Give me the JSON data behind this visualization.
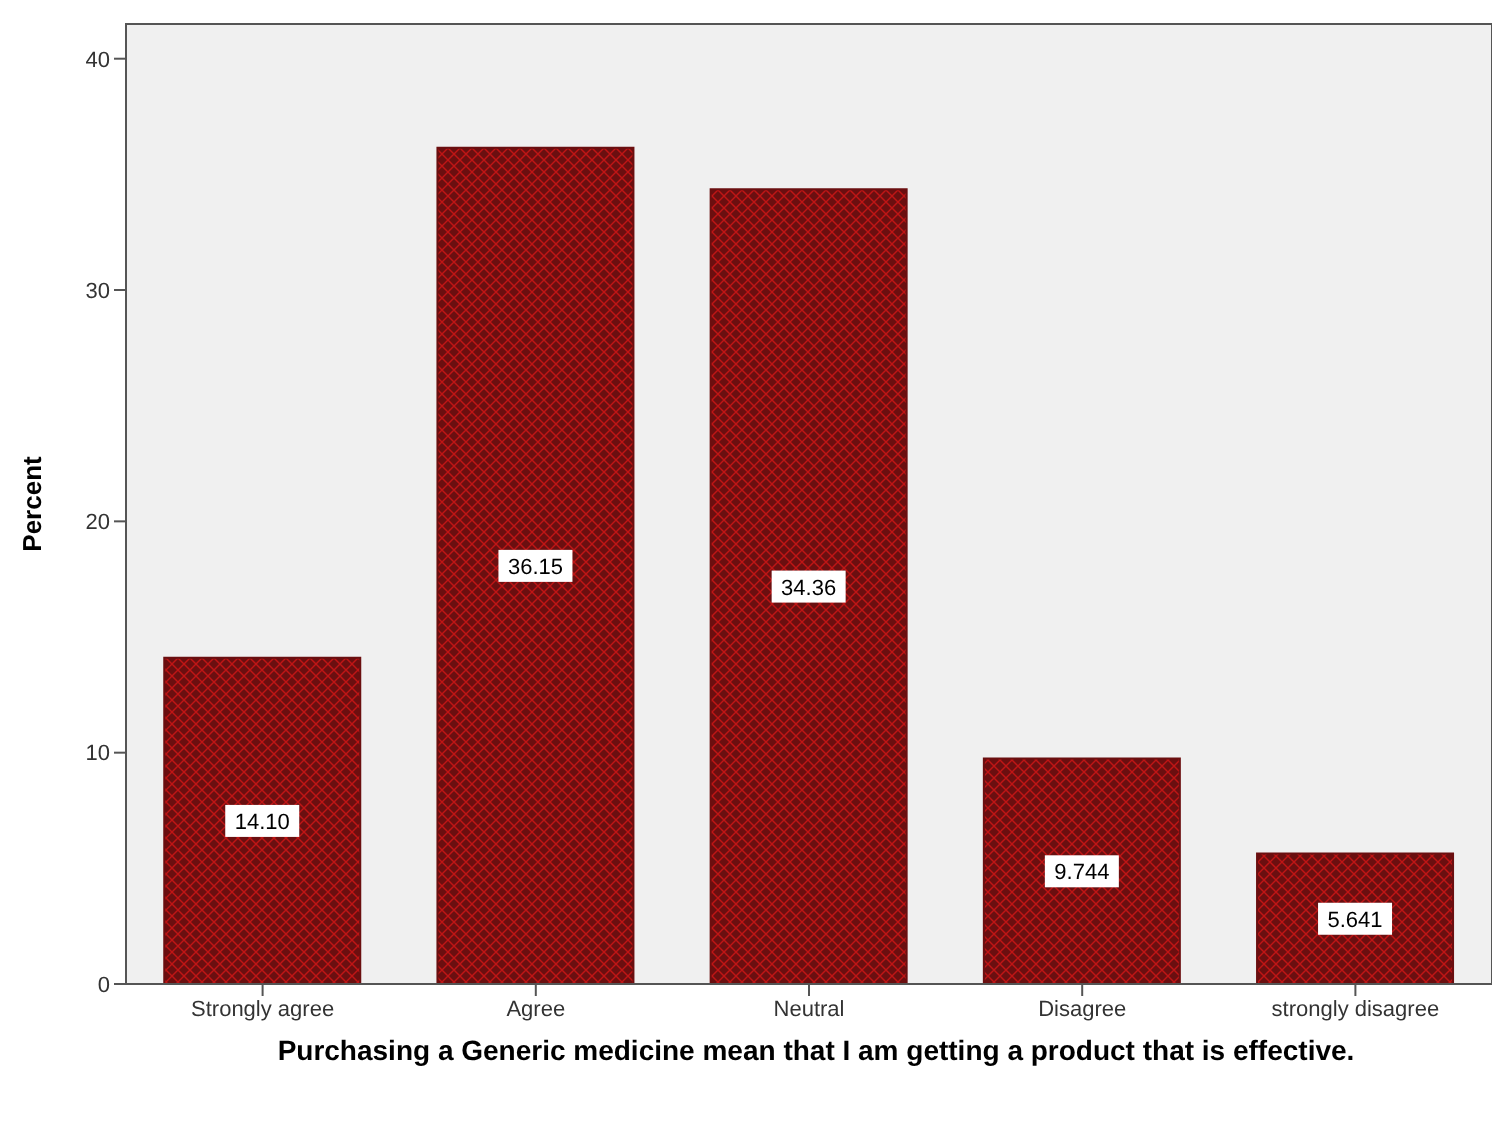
{
  "chart_data": {
    "type": "bar",
    "xlabel": "Purchasing a Generic medicine mean that I am getting a product that is effective.",
    "ylabel": "Percent",
    "categories": [
      "Strongly agree",
      "Agree",
      "Neutral",
      "Disagree",
      "strongly disagree"
    ],
    "values": [
      14.1,
      36.15,
      34.36,
      9.744,
      5.641
    ],
    "value_labels": [
      "14.10",
      "36.15",
      "34.36",
      "9.744",
      "5.641"
    ],
    "color": "#6b0f10",
    "ylim": [
      0,
      41.5
    ],
    "yticks": [
      0,
      10,
      20,
      30,
      40
    ]
  }
}
